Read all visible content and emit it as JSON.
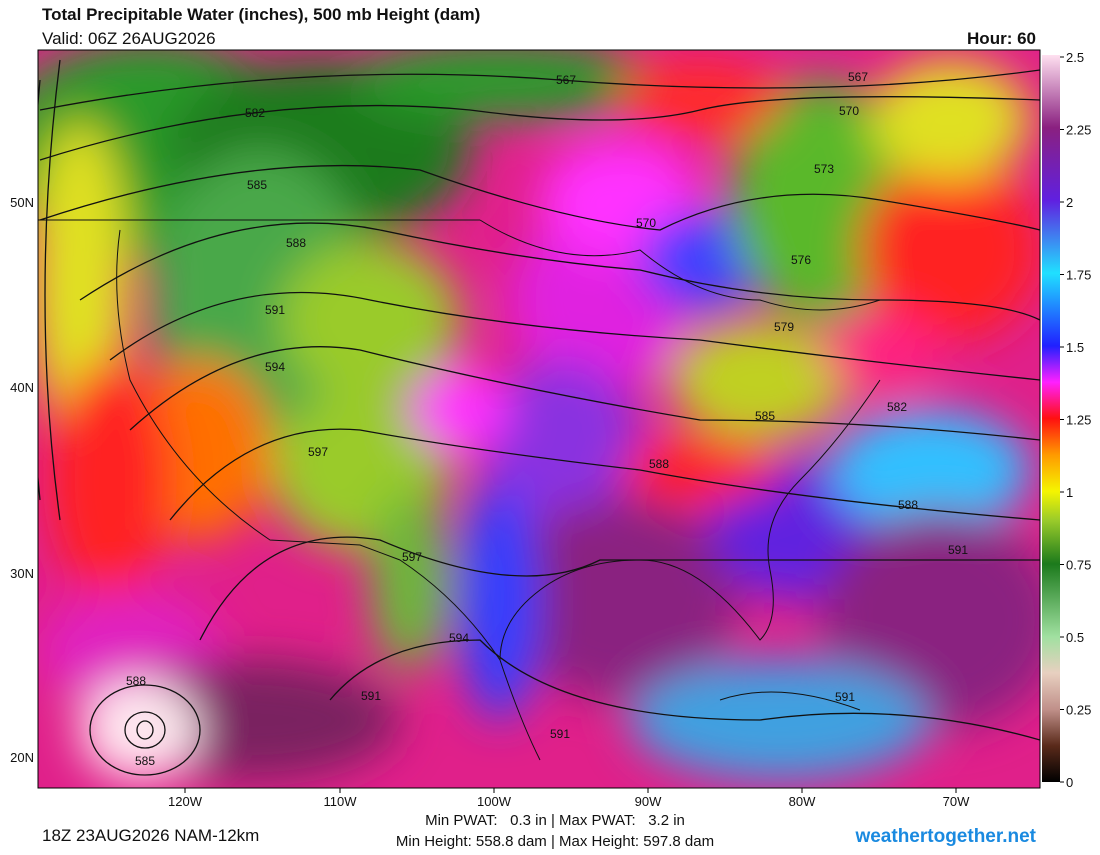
{
  "header": {
    "title": "Total Precipitable Water (inches), 500 mb Height (dam)",
    "valid": "Valid: 06Z 26AUG2026",
    "hour": "Hour: 60"
  },
  "map": {
    "lat_labels": [
      "50N",
      "40N",
      "30N",
      "20N"
    ],
    "lon_labels": [
      "120W",
      "110W",
      "100W",
      "90W",
      "80W",
      "70W"
    ],
    "contour_labels": [
      "567",
      "567",
      "582",
      "570",
      "585",
      "573",
      "570",
      "588",
      "576",
      "591",
      "579",
      "594",
      "582",
      "585",
      "597",
      "588",
      "588",
      "591",
      "597",
      "594",
      "588",
      "591",
      "591",
      "591",
      "585"
    ]
  },
  "colorbar": {
    "ticks": [
      2.5,
      2.25,
      2,
      1.75,
      1.5,
      1.25,
      1,
      0.75,
      0.5,
      0.25,
      0
    ]
  },
  "footer": {
    "run": "18Z 23AUG2026 NAM-12km",
    "stats_line1": "Min PWAT:   0.3 in | Max PWAT:   3.2 in",
    "stats_line2": "Min Height: 558.8 dam | Max Height: 597.8 dam",
    "site": "weathertogether.net"
  }
}
